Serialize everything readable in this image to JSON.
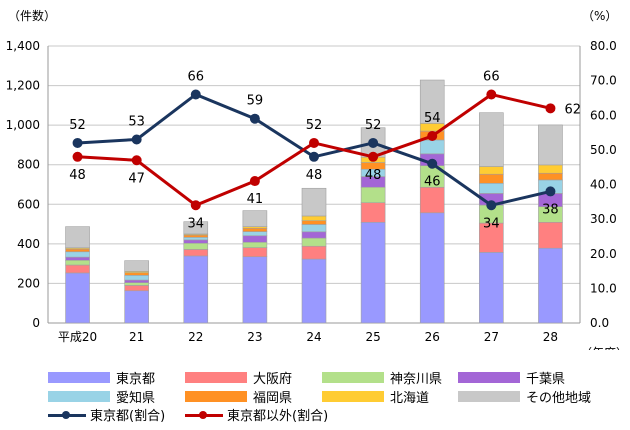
{
  "chart_data": {
    "type": "bar",
    "stacked": true,
    "y_unit_label": "（件数）",
    "y2_unit_label": "（%）",
    "x_unit_label": "（年度）",
    "categories": [
      "平成20",
      "21",
      "22",
      "23",
      "24",
      "25",
      "26",
      "27",
      "28"
    ],
    "ylim": [
      0,
      1400
    ],
    "yticks": [
      "0",
      "200",
      "400",
      "600",
      "800",
      "1,000",
      "1,200",
      "1,400"
    ],
    "y2lim": [
      0,
      80
    ],
    "y2ticks": [
      "0.0",
      "10.0",
      "20.0",
      "30.0",
      "40.0",
      "50.0",
      "60.0",
      "70.0",
      "80.0"
    ],
    "grid": true,
    "series": [
      {
        "name": "東京都",
        "color": "#9999ff",
        "values": [
          253,
          163,
          339,
          335,
          323,
          509,
          557,
          357,
          378
        ]
      },
      {
        "name": "大阪府",
        "color": "#ff8080",
        "values": [
          40,
          27,
          33,
          46,
          65,
          99,
          129,
          148,
          131
        ]
      },
      {
        "name": "神奈川県",
        "color": "#b3e08a",
        "values": [
          24,
          14,
          31,
          27,
          41,
          78,
          109,
          91,
          79
        ]
      },
      {
        "name": "千葉県",
        "color": "#a366d6",
        "values": [
          16,
          13,
          17,
          33,
          32,
          54,
          60,
          59,
          67
        ]
      },
      {
        "name": "愛知県",
        "color": "#99d3e6",
        "values": [
          27,
          24,
          13,
          21,
          37,
          37,
          70,
          51,
          68
        ]
      },
      {
        "name": "福岡県",
        "color": "#ff9124",
        "values": [
          14,
          13,
          12,
          17,
          19,
          34,
          45,
          46,
          34
        ]
      },
      {
        "name": "北海道",
        "color": "#ffcc33",
        "values": [
          6,
          7,
          5,
          8,
          24,
          27,
          39,
          39,
          42
        ]
      },
      {
        "name": "その他地域",
        "color": "#c8c8c8",
        "values": [
          107,
          54,
          62,
          81,
          140,
          149,
          219,
          272,
          202
        ]
      }
    ],
    "lines": [
      {
        "name": "東京都(割合)",
        "color": "#1a355e",
        "axis": "right",
        "values": [
          52,
          53,
          66,
          59,
          48,
          52,
          46,
          34,
          38
        ]
      },
      {
        "name": "東京都以外(割合)",
        "color": "#c00000",
        "axis": "right",
        "values": [
          48,
          47,
          34,
          41,
          52,
          48,
          54,
          66,
          62
        ]
      }
    ],
    "legend_position": "bottom"
  }
}
